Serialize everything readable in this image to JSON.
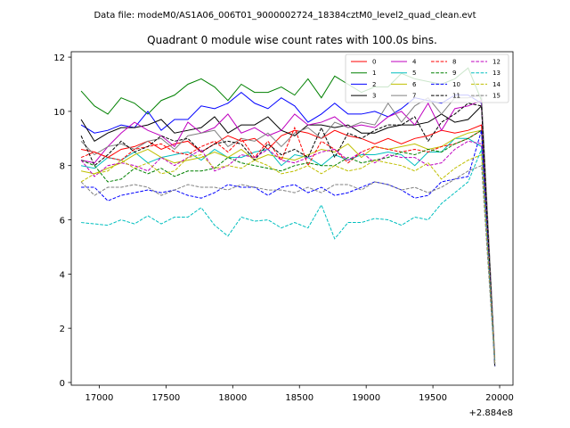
{
  "chart_data": {
    "type": "line",
    "suptitle": "Data file: modeM0/AS1A06_006T01_9000002724_18384cztM0_level2_quad_clean.evt",
    "title": "Quadrant 0 module wise count rates with 100.0s bins.",
    "xlabel": "",
    "ylabel": "",
    "x_offset_label": "+2.884e8",
    "xlim": [
      16790,
      20100
    ],
    "ylim": [
      -0.1,
      12.2
    ],
    "xticks": [
      17000,
      17500,
      18000,
      18500,
      19000,
      19500,
      20000
    ],
    "xtick_labels": [
      "17000",
      "17500",
      "18000",
      "18500",
      "19000",
      "19500",
      "20000"
    ],
    "yticks": [
      0,
      2,
      4,
      6,
      8,
      10,
      12
    ],
    "ytick_labels": [
      "0",
      "2",
      "4",
      "6",
      "8",
      "10",
      "12"
    ],
    "x": [
      16864,
      16964,
      17064,
      17164,
      17264,
      17364,
      17464,
      17564,
      17664,
      17764,
      17864,
      17964,
      18064,
      18164,
      18264,
      18364,
      18464,
      18564,
      18664,
      18764,
      18864,
      18964,
      19064,
      19164,
      19264,
      19364,
      19464,
      19564,
      19664,
      19764,
      19864,
      19964
    ],
    "series": [
      {
        "name": "0",
        "color": "#ff0000",
        "dash": "solid",
        "values": [
          8.6,
          8.5,
          8.3,
          8.6,
          8.7,
          8.9,
          8.6,
          8.8,
          8.9,
          8.5,
          8.8,
          9.1,
          8.9,
          9.0,
          8.6,
          9.1,
          9.3,
          9.2,
          9.0,
          9.3,
          9.1,
          9.0,
          8.8,
          9.0,
          8.8,
          9.0,
          9.1,
          9.3,
          9.2,
          9.3,
          9.5,
          0.7
        ]
      },
      {
        "name": "1",
        "color": "#008000",
        "dash": "solid",
        "values": [
          10.75,
          10.2,
          9.9,
          10.5,
          10.3,
          9.9,
          10.4,
          10.6,
          11.0,
          11.2,
          10.9,
          10.4,
          11.0,
          10.7,
          10.7,
          10.9,
          10.6,
          11.2,
          10.5,
          11.3,
          11.0,
          10.7,
          10.9,
          10.9,
          11.4,
          11.2,
          11.1,
          11.0,
          11.2,
          11.6,
          10.4,
          0.8
        ]
      },
      {
        "name": "2",
        "color": "#0000ff",
        "dash": "solid",
        "values": [
          9.5,
          9.2,
          9.3,
          9.5,
          9.4,
          10.0,
          9.3,
          9.7,
          9.7,
          10.2,
          10.1,
          10.3,
          10.7,
          10.3,
          10.1,
          10.5,
          10.2,
          9.6,
          9.9,
          10.3,
          9.9,
          9.9,
          10.0,
          9.8,
          10.1,
          10.5,
          10.4,
          10.3,
          10.6,
          10.6,
          10.3,
          0.6
        ]
      },
      {
        "name": "3",
        "color": "#000000",
        "dash": "solid",
        "values": [
          9.7,
          8.9,
          9.2,
          9.4,
          9.4,
          9.5,
          9.7,
          9.2,
          9.3,
          9.4,
          9.8,
          9.2,
          9.5,
          9.5,
          9.8,
          9.3,
          9.1,
          9.5,
          9.5,
          9.4,
          9.5,
          9.2,
          9.2,
          9.4,
          9.5,
          9.5,
          9.6,
          9.9,
          9.6,
          9.7,
          10.2,
          0.6
        ]
      },
      {
        "name": "4",
        "color": "#bf00bf",
        "dash": "solid",
        "values": [
          8.2,
          8.1,
          8.7,
          9.2,
          9.6,
          9.3,
          9.1,
          8.7,
          9.6,
          9.2,
          9.4,
          9.9,
          9.2,
          9.4,
          9.1,
          9.3,
          9.9,
          9.5,
          9.6,
          9.8,
          9.4,
          9.5,
          9.4,
          9.8,
          10.0,
          9.5,
          10.3,
          9.3,
          10.1,
          10.2,
          10.4,
          0.8
        ]
      },
      {
        "name": "5",
        "color": "#00bfbf",
        "dash": "solid",
        "values": [
          8.0,
          7.9,
          8.3,
          8.2,
          8.5,
          8.1,
          8.3,
          8.4,
          8.5,
          8.2,
          8.6,
          8.3,
          8.3,
          8.5,
          8.6,
          8.0,
          8.4,
          8.3,
          8.0,
          8.4,
          8.2,
          8.4,
          8.4,
          8.5,
          8.4,
          8.0,
          8.5,
          8.5,
          9.0,
          9.0,
          8.7,
          0.7
        ]
      },
      {
        "name": "6",
        "color": "#bfbf00",
        "dash": "solid",
        "values": [
          7.8,
          7.7,
          7.9,
          8.1,
          8.4,
          8.6,
          8.3,
          8.1,
          8.2,
          8.3,
          8.5,
          8.3,
          8.6,
          8.2,
          8.4,
          8.3,
          8.2,
          8.4,
          8.6,
          8.5,
          8.8,
          8.3,
          8.7,
          8.6,
          8.7,
          8.8,
          8.6,
          8.7,
          9.0,
          9.2,
          9.3,
          0.7
        ]
      },
      {
        "name": "7",
        "color": "#808080",
        "dash": "solid",
        "values": [
          8.9,
          8.4,
          8.7,
          8.8,
          8.6,
          8.9,
          9.0,
          8.6,
          9.1,
          9.2,
          9.3,
          8.7,
          9.0,
          8.9,
          9.2,
          8.7,
          9.2,
          9.4,
          9.0,
          9.6,
          9.4,
          9.6,
          9.5,
          10.3,
          9.6,
          10.2,
          10.5,
          9.9,
          10.5,
          10.5,
          10.6,
          0.9
        ]
      },
      {
        "name": "8",
        "color": "#ff0000",
        "dash": "dashed",
        "values": [
          8.3,
          8.5,
          8.3,
          8.2,
          8.6,
          8.7,
          8.8,
          8.5,
          8.4,
          8.7,
          8.9,
          8.5,
          9.0,
          8.3,
          8.9,
          8.2,
          9.4,
          8.0,
          8.9,
          8.6,
          8.1,
          8.5,
          8.7,
          8.6,
          8.5,
          8.6,
          8.5,
          8.7,
          8.8,
          9.0,
          9.3,
          0.7
        ]
      },
      {
        "name": "9",
        "color": "#008000",
        "dash": "dashed",
        "values": [
          8.2,
          8.0,
          7.4,
          7.5,
          7.9,
          7.7,
          7.9,
          7.6,
          7.8,
          7.8,
          7.9,
          8.3,
          8.1,
          8.0,
          7.9,
          7.8,
          8.0,
          8.1,
          8.0,
          8.0,
          8.3,
          8.1,
          8.2,
          8.3,
          8.5,
          8.4,
          8.6,
          8.5,
          8.8,
          9.0,
          9.3,
          0.7
        ]
      },
      {
        "name": "10",
        "color": "#0000ff",
        "dash": "dashed",
        "values": [
          7.2,
          7.2,
          6.7,
          6.9,
          7.0,
          7.1,
          7.0,
          7.1,
          6.9,
          6.8,
          7.0,
          7.3,
          7.2,
          7.2,
          6.9,
          7.2,
          7.3,
          7.0,
          7.2,
          6.9,
          7.0,
          7.2,
          7.4,
          7.3,
          7.1,
          6.8,
          6.9,
          7.4,
          7.5,
          7.6,
          9.3,
          0.6
        ]
      },
      {
        "name": "11",
        "color": "#000000",
        "dash": "dashed",
        "values": [
          9.1,
          8.0,
          8.4,
          8.9,
          8.5,
          8.7,
          9.1,
          8.9,
          9.0,
          8.5,
          8.8,
          8.9,
          8.8,
          8.2,
          8.8,
          8.4,
          8.6,
          8.3,
          9.4,
          8.3,
          9.2,
          9.0,
          9.3,
          9.5,
          9.5,
          9.8,
          8.9,
          9.6,
          9.9,
          10.3,
          10.2,
          0.6
        ]
      },
      {
        "name": "12",
        "color": "#bf00bf",
        "dash": "dashed",
        "values": [
          8.2,
          7.6,
          8.0,
          8.1,
          8.0,
          7.8,
          8.3,
          8.0,
          8.3,
          8.6,
          7.8,
          8.0,
          8.4,
          8.3,
          8.6,
          8.2,
          8.1,
          8.3,
          8.5,
          8.6,
          8.2,
          8.5,
          8.1,
          8.4,
          8.3,
          8.3,
          8.0,
          8.1,
          8.6,
          8.9,
          8.8,
          0.7
        ]
      },
      {
        "name": "13",
        "color": "#00bfbf",
        "dash": "dashed",
        "values": [
          5.9,
          5.85,
          5.8,
          6.0,
          5.85,
          6.15,
          5.85,
          6.1,
          6.1,
          6.45,
          5.8,
          5.4,
          6.1,
          5.95,
          6.0,
          5.7,
          5.9,
          5.7,
          6.55,
          5.3,
          5.9,
          5.9,
          6.05,
          6.0,
          5.8,
          6.1,
          6.0,
          6.6,
          7.0,
          7.4,
          8.6,
          0.7
        ]
      },
      {
        "name": "14",
        "color": "#bfbf00",
        "dash": "dashed",
        "values": [
          7.4,
          7.7,
          7.8,
          8.2,
          7.9,
          8.1,
          7.7,
          7.8,
          8.3,
          8.4,
          7.9,
          8.0,
          7.9,
          8.2,
          8.0,
          7.7,
          7.8,
          8.0,
          7.7,
          8.0,
          7.8,
          7.9,
          8.2,
          8.1,
          8.0,
          7.8,
          8.1,
          7.5,
          7.9,
          8.2,
          8.4,
          0.7
        ]
      },
      {
        "name": "15",
        "color": "#808080",
        "dash": "dashed",
        "values": [
          7.4,
          6.9,
          7.2,
          7.2,
          7.3,
          7.2,
          6.9,
          7.1,
          7.3,
          7.2,
          7.2,
          7.1,
          7.3,
          7.2,
          7.1,
          7.1,
          7.0,
          7.2,
          7.0,
          7.3,
          7.3,
          7.1,
          7.4,
          7.3,
          7.1,
          7.2,
          7.0,
          7.2,
          7.5,
          7.8,
          8.0,
          0.6
        ]
      }
    ],
    "legend": {
      "location": "top-right",
      "ncol": 4
    }
  }
}
